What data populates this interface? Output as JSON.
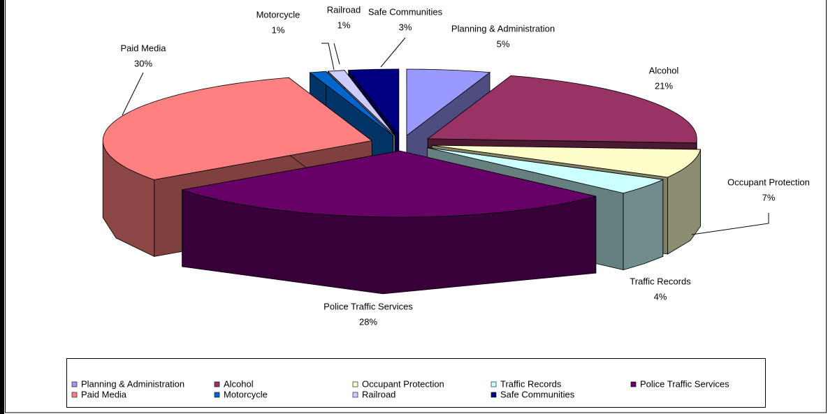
{
  "chart_data": {
    "type": "pie3d",
    "categories": [
      "Planning & Administration",
      "Alcohol",
      "Occupant Protection",
      "Traffic Records",
      "Police Traffic Services",
      "Paid Media",
      "Motorcycle",
      "Railroad",
      "Safe Communities"
    ],
    "values": [
      5,
      21,
      7,
      4,
      28,
      30,
      1,
      1,
      3
    ],
    "value_labels": [
      "5%",
      "21%",
      "7%",
      "4%",
      "28%",
      "30%",
      "1%",
      "1%",
      "3%"
    ],
    "colors": [
      "#9999ff",
      "#993366",
      "#ffffcc",
      "#ccffff",
      "#660066",
      "#ff8080",
      "#0066cc",
      "#ccccff",
      "#000080"
    ],
    "legend": "bottom"
  }
}
